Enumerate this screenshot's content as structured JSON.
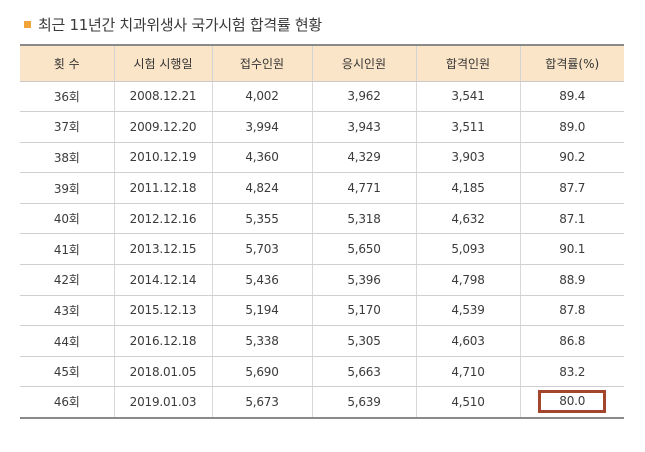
{
  "title": "최근 11년간 치과위생사 국가시험 합격률 현황",
  "colors": {
    "bullet": "#f0a43a",
    "header_bg": "#fbe5c8",
    "highlight": "#a3462c"
  },
  "table": {
    "headers": [
      "횟 수",
      "시험 시행일",
      "접수인원",
      "응시인원",
      "합격인원",
      "합격률(%)"
    ],
    "rows": [
      [
        "36회",
        "2008.12.21",
        "4,002",
        "3,962",
        "3,541",
        "89.4"
      ],
      [
        "37회",
        "2009.12.20",
        "3,994",
        "3,943",
        "3,511",
        "89.0"
      ],
      [
        "38회",
        "2010.12.19",
        "4,360",
        "4,329",
        "3,903",
        "90.2"
      ],
      [
        "39회",
        "2011.12.18",
        "4,824",
        "4,771",
        "4,185",
        "87.7"
      ],
      [
        "40회",
        "2012.12.16",
        "5,355",
        "5,318",
        "4,632",
        "87.1"
      ],
      [
        "41회",
        "2013.12.15",
        "5,703",
        "5,650",
        "5,093",
        "90.1"
      ],
      [
        "42회",
        "2014.12.14",
        "5,436",
        "5,396",
        "4,798",
        "88.9"
      ],
      [
        "43회",
        "2015.12.13",
        "5,194",
        "5,170",
        "4,539",
        "87.8"
      ],
      [
        "44회",
        "2016.12.18",
        "5,338",
        "5,305",
        "4,603",
        "86.8"
      ],
      [
        "45회",
        "2018.01.05",
        "5,690",
        "5,663",
        "4,710",
        "83.2"
      ],
      [
        "46회",
        "2019.01.03",
        "5,673",
        "5,639",
        "4,510",
        "80.0"
      ]
    ]
  }
}
